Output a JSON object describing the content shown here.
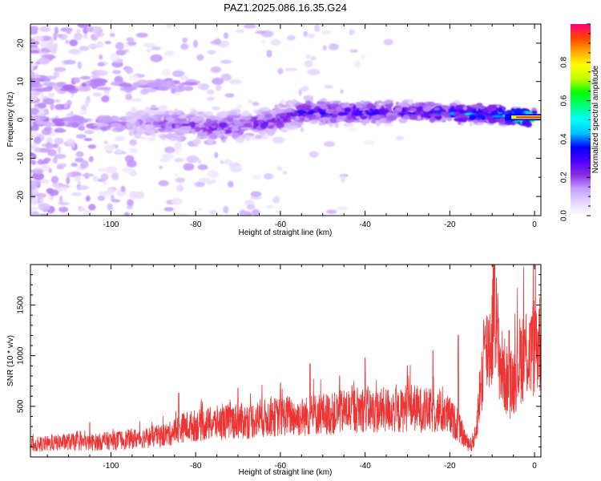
{
  "title": "PAZ1.2025.086.16.35.G24",
  "chart_data": [
    {
      "type": "heatmap",
      "xlabel": "Height of straight line (km)",
      "ylabel": "Frequency (Hz)",
      "xlim": [
        -119,
        1.5
      ],
      "ylim": [
        -25,
        25
      ],
      "xticks": [
        -100,
        -80,
        -60,
        -40,
        -20,
        0
      ],
      "yticks": [
        -20,
        -10,
        0,
        10,
        20
      ],
      "grid": false,
      "colorbar": {
        "label": "Normalized spectral amplitude",
        "range": [
          0,
          1
        ],
        "ticks": [
          0.0,
          0.2,
          0.4,
          0.6,
          0.8
        ],
        "colormap": [
          "#ffffff",
          "#e6d5ff",
          "#c39bff",
          "#8a2be2",
          "#4b00ff",
          "#0000ff",
          "#00c0ff",
          "#00ffff",
          "#00ff80",
          "#00ff00",
          "#c0ff00",
          "#ffff00",
          "#ffa500",
          "#ff4000",
          "#ff0080"
        ]
      },
      "ridge": {
        "x": [
          -95,
          -85,
          -75,
          -65,
          -55,
          -45,
          -35,
          -25,
          -15,
          -10,
          -5,
          0,
          1.5
        ],
        "center_hz": [
          -1,
          -1,
          -2,
          -1,
          2,
          2,
          2,
          2,
          1.5,
          1.5,
          1,
          0.5,
          0.5
        ],
        "peak_amplitude": [
          0.15,
          0.22,
          0.25,
          0.25,
          0.3,
          0.32,
          0.3,
          0.32,
          0.42,
          0.45,
          0.55,
          0.9,
          0.95
        ]
      }
    },
    {
      "type": "line",
      "xlabel": "Height of straight line (km)",
      "ylabel": "SNR (10 * v/v)",
      "xlim": [
        -119,
        1.5
      ],
      "ylim": [
        0,
        1900
      ],
      "xticks": [
        -100,
        -80,
        -60,
        -40,
        -20,
        0
      ],
      "yticks": [
        500,
        1000,
        1500
      ],
      "color": "#ee3333",
      "grid": false,
      "x": [
        -119,
        -115,
        -110,
        -105,
        -100,
        -97,
        -95,
        -92,
        -90,
        -88,
        -86,
        -84,
        -82,
        -80,
        -78,
        -76,
        -74,
        -72,
        -70,
        -68,
        -66,
        -64,
        -62,
        -60,
        -58,
        -56,
        -54,
        -52,
        -50,
        -48,
        -46,
        -44,
        -42,
        -40,
        -38,
        -36,
        -34,
        -32,
        -30,
        -28,
        -26,
        -24,
        -22,
        -20,
        -18,
        -16,
        -15,
        -14,
        -13,
        -12,
        -11,
        -10,
        -9.5,
        -9,
        -8,
        -7,
        -6,
        -5,
        -4,
        -3,
        -2,
        -1,
        0,
        1,
        1.5
      ],
      "y": [
        120,
        130,
        150,
        140,
        160,
        170,
        180,
        190,
        200,
        210,
        230,
        280,
        300,
        310,
        320,
        330,
        340,
        350,
        360,
        350,
        370,
        380,
        390,
        400,
        410,
        390,
        400,
        420,
        430,
        420,
        440,
        460,
        470,
        480,
        450,
        460,
        470,
        440,
        500,
        480,
        460,
        450,
        440,
        400,
        300,
        150,
        120,
        200,
        600,
        900,
        1100,
        1200,
        1900,
        1250,
        900,
        800,
        700,
        750,
        900,
        1000,
        1050,
        1000,
        1100,
        1150,
        1120
      ],
      "peaks": [
        {
          "x": -105,
          "y": 340
        },
        {
          "x": -84,
          "y": 630
        },
        {
          "x": -70,
          "y": 680
        },
        {
          "x": -60,
          "y": 730
        },
        {
          "x": -53,
          "y": 920
        },
        {
          "x": -46,
          "y": 800
        },
        {
          "x": -40,
          "y": 980
        },
        {
          "x": -30,
          "y": 900
        },
        {
          "x": -24,
          "y": 1050
        },
        {
          "x": -18,
          "y": 1200
        },
        {
          "x": -12,
          "y": 1350
        },
        {
          "x": -9.5,
          "y": 1900
        },
        {
          "x": -6,
          "y": 1250
        },
        {
          "x": -1,
          "y": 1320
        }
      ]
    }
  ]
}
